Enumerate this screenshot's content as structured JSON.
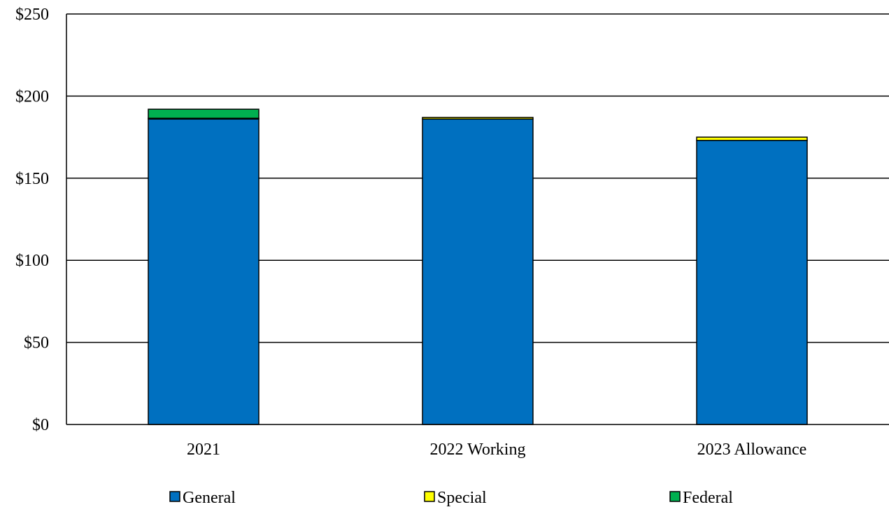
{
  "chart_data": {
    "type": "bar",
    "stacked": true,
    "categories": [
      "2021",
      "2022 Working",
      "2023 Allowance"
    ],
    "series": [
      {
        "name": "General",
        "color": "#0070c0",
        "values": [
          186,
          186,
          173
        ]
      },
      {
        "name": "Special",
        "color": "#ffff00",
        "values": [
          0.5,
          1,
          2
        ]
      },
      {
        "name": "Federal",
        "color": "#00b050",
        "values": [
          5.5,
          0,
          0
        ]
      }
    ],
    "ylim": [
      0,
      250
    ],
    "yticks": [
      0,
      50,
      100,
      150,
      200,
      250
    ],
    "ytick_labels": [
      "$0",
      "$50",
      "$100",
      "$150",
      "$200",
      "$250"
    ],
    "grid": true,
    "legend_position": "bottom"
  }
}
